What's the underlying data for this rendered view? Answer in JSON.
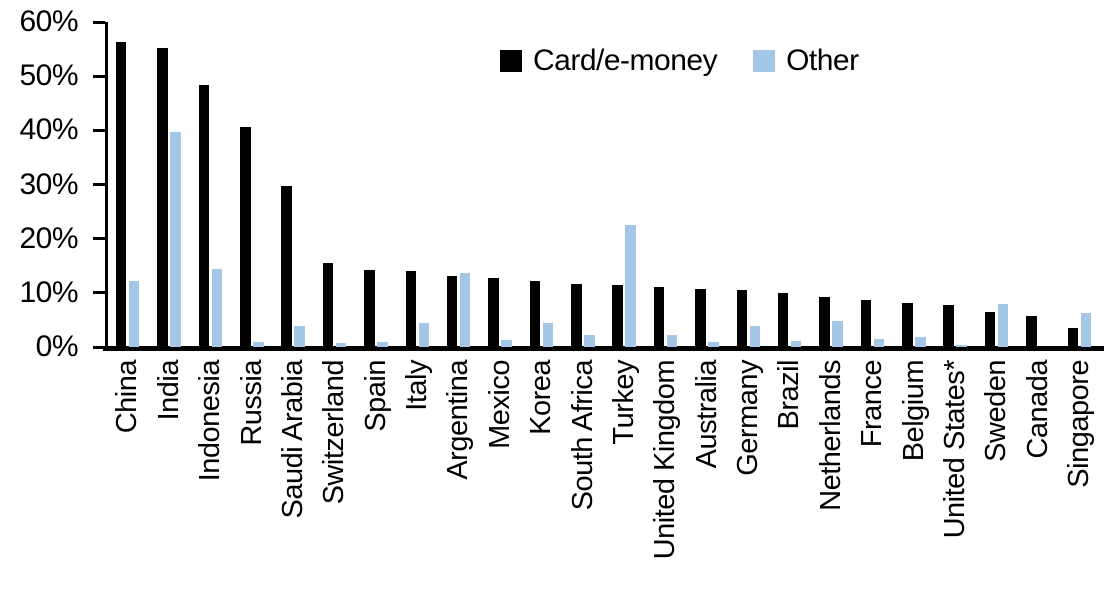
{
  "chart_data": {
    "type": "bar",
    "title": "",
    "xlabel": "",
    "ylabel": "",
    "ylim": [
      0,
      60
    ],
    "y_tick_labels": [
      "0%",
      "10%",
      "20%",
      "30%",
      "40%",
      "50%",
      "60%"
    ],
    "grid": false,
    "legend_position": "top-center",
    "categories": [
      "China",
      "India",
      "Indonesia",
      "Russia",
      "Saudi Arabia",
      "Switzerland",
      "Spain",
      "Italy",
      "Argentina",
      "Mexico",
      "Korea",
      "South Africa",
      "Turkey",
      "United Kingdom",
      "Australia",
      "Germany",
      "Brazil",
      "Netherlands",
      "France",
      "Belgium",
      "United States*",
      "Sweden",
      "Canada",
      "Singapore"
    ],
    "series": [
      {
        "name": "Card/e-money",
        "color": "#000000",
        "values": [
          56.4,
          55.2,
          48.4,
          40.6,
          29.8,
          15.5,
          14.2,
          14.0,
          13.2,
          12.8,
          12.2,
          11.7,
          11.5,
          11.0,
          10.8,
          10.5,
          10.0,
          9.2,
          8.6,
          8.1,
          7.8,
          6.4,
          5.7,
          3.6
        ],
        "legend_swatch": "black-square-icon"
      },
      {
        "name": "Other",
        "color": "#a4c7e8",
        "values": [
          12.2,
          39.7,
          14.4,
          0.9,
          3.9,
          0.8,
          0.9,
          4.4,
          13.7,
          1.3,
          4.5,
          2.2,
          22.5,
          2.2,
          0.9,
          3.9,
          1.2,
          4.8,
          1.4,
          1.9,
          0.3,
          7.9,
          0.0,
          6.3
        ],
        "legend_swatch": "blue-square-icon"
      }
    ]
  }
}
